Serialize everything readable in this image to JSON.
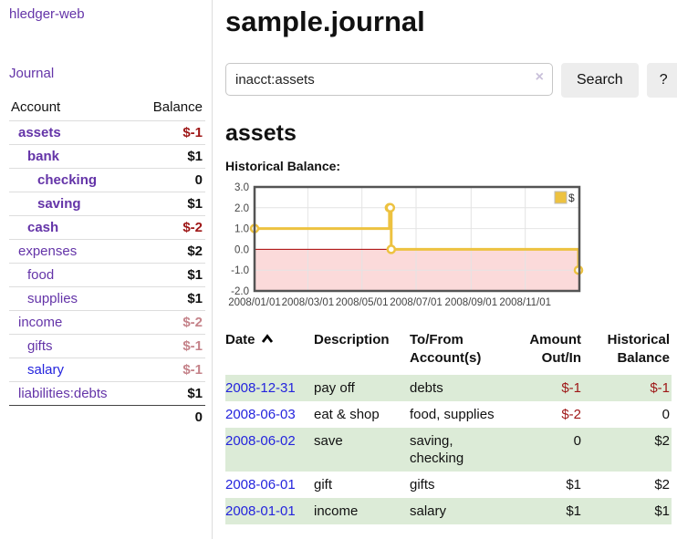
{
  "sidebar": {
    "app_title": "hledger-web",
    "journal_label": "Journal",
    "accounts_table": {
      "headers": {
        "account": "Account",
        "balance": "Balance"
      },
      "rows": [
        {
          "name": "assets",
          "balance": "$-1",
          "indent": 1,
          "emphasis": true,
          "negative": "strong"
        },
        {
          "name": "bank",
          "balance": "$1",
          "indent": 2,
          "emphasis": true,
          "negative": "none"
        },
        {
          "name": "checking",
          "balance": "0",
          "indent": 3,
          "emphasis": true,
          "negative": "none"
        },
        {
          "name": "saving",
          "balance": "$1",
          "indent": 3,
          "emphasis": true,
          "negative": "none"
        },
        {
          "name": "cash",
          "balance": "$-2",
          "indent": 2,
          "emphasis": true,
          "negative": "strong"
        },
        {
          "name": "expenses",
          "balance": "$2",
          "indent": 1,
          "emphasis": false,
          "negative": "none"
        },
        {
          "name": "food",
          "balance": "$1",
          "indent": 2,
          "emphasis": false,
          "negative": "none"
        },
        {
          "name": "supplies",
          "balance": "$1",
          "indent": 2,
          "emphasis": false,
          "negative": "none"
        },
        {
          "name": "income",
          "balance": "$-2",
          "indent": 1,
          "emphasis": false,
          "negative": "faded"
        },
        {
          "name": "gifts",
          "balance": "$-1",
          "indent": 2,
          "emphasis": false,
          "negative": "faded"
        },
        {
          "name": "salary",
          "balance": "$-1",
          "indent": 2,
          "emphasis": false,
          "negative": "faded",
          "link_style": "blue"
        },
        {
          "name": "liabilities:debts",
          "balance": "$1",
          "indent": 1,
          "emphasis": false,
          "negative": "none"
        }
      ],
      "total": "0"
    }
  },
  "main": {
    "title": "sample.journal",
    "search": {
      "value": "inacct:assets",
      "clear_icon": "×",
      "button_label": "Search",
      "help_label": "?"
    },
    "account_heading": "assets",
    "chart_label": "Historical Balance:",
    "register": {
      "headers": {
        "date": "Date",
        "description": "Description",
        "accounts_line1": "To/From",
        "accounts_line2": "Account(s)",
        "amount_line1": "Amount",
        "amount_line2": "Out/In",
        "balance_line1": "Historical",
        "balance_line2": "Balance"
      },
      "sort_icon": "chevron-up",
      "rows": [
        {
          "date": "2008-12-31",
          "description": "pay off",
          "accounts": "debts",
          "amount": "$-1",
          "balance": "$-1",
          "amount_negative": true,
          "balance_negative": true
        },
        {
          "date": "2008-06-03",
          "description": "eat & shop",
          "accounts": "food, supplies",
          "amount": "$-2",
          "balance": "0",
          "amount_negative": true,
          "balance_negative": false
        },
        {
          "date": "2008-06-02",
          "description": "save",
          "accounts": "saving, checking",
          "amount": "0",
          "balance": "$2",
          "amount_negative": false,
          "balance_negative": false
        },
        {
          "date": "2008-06-01",
          "description": "gift",
          "accounts": "gifts",
          "amount": "$1",
          "balance": "$2",
          "amount_negative": false,
          "balance_negative": false
        },
        {
          "date": "2008-01-01",
          "description": "income",
          "accounts": "salary",
          "amount": "$1",
          "balance": "$1",
          "amount_negative": false,
          "balance_negative": false
        }
      ]
    }
  },
  "chart_data": {
    "type": "line",
    "step": true,
    "title": "Historical Balance:",
    "series_name": "$",
    "x": [
      "2008-01-01",
      "2008-06-01",
      "2008-06-02",
      "2008-06-03",
      "2008-12-31"
    ],
    "y": [
      1,
      2,
      2,
      0,
      -1
    ],
    "x_range": [
      "2008-01-01",
      "2009-01-01"
    ],
    "ylim": [
      -2,
      3
    ],
    "y_ticks": [
      {
        "v": 3,
        "label": "3.0"
      },
      {
        "v": 2,
        "label": "2.0"
      },
      {
        "v": 1,
        "label": "1.0"
      },
      {
        "v": 0,
        "label": "0.0"
      },
      {
        "v": -1,
        "label": "-1.0"
      },
      {
        "v": -2,
        "label": "-2.0"
      }
    ],
    "x_ticks": [
      {
        "date": "2008-01-01",
        "label": "2008/01/01"
      },
      {
        "date": "2008-03-01",
        "label": "2008/03/01"
      },
      {
        "date": "2008-05-01",
        "label": "2008/05/01"
      },
      {
        "date": "2008-07-01",
        "label": "2008/07/01"
      },
      {
        "date": "2008-09-01",
        "label": "2008/09/01"
      },
      {
        "date": "2008-11-01",
        "label": "2008/11/01"
      }
    ],
    "grid": true,
    "legend": {
      "label": "$",
      "position": "top-right",
      "swatch": "square"
    },
    "marker": "open-circle",
    "line_color": "#edc240",
    "negative_region_color": "#fbdada",
    "zero_line_color": "#aa0000",
    "border_color": "#545454",
    "grid_color": "#e4e4e4"
  },
  "colors": {
    "link_purple": "#6434a8",
    "link_blue": "#2424dd",
    "negative_strong": "#9e1616",
    "negative_faded": "#c5838a",
    "row_green": "#dcebd7",
    "button_bg": "#ededed"
  }
}
